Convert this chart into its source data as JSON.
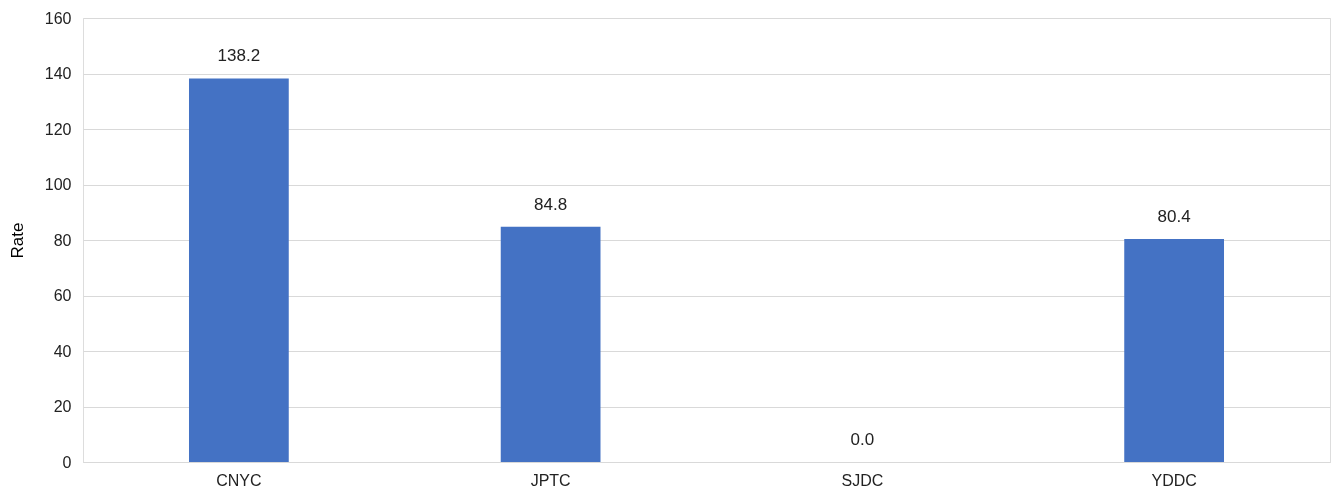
{
  "chart_data": {
    "type": "bar",
    "ylabel": "Rate",
    "categories": [
      "CNYC",
      "JPTC",
      "SJDC",
      "YDDC"
    ],
    "values": [
      138.2,
      84.8,
      0.0,
      80.4
    ],
    "value_labels": [
      "138.2",
      "84.8",
      "0.0",
      "80.4"
    ],
    "color": "#4472c4",
    "ylim": [
      0,
      160
    ],
    "yticks": [
      0,
      20,
      40,
      60,
      80,
      100,
      120,
      140,
      160
    ],
    "grid": "y"
  }
}
